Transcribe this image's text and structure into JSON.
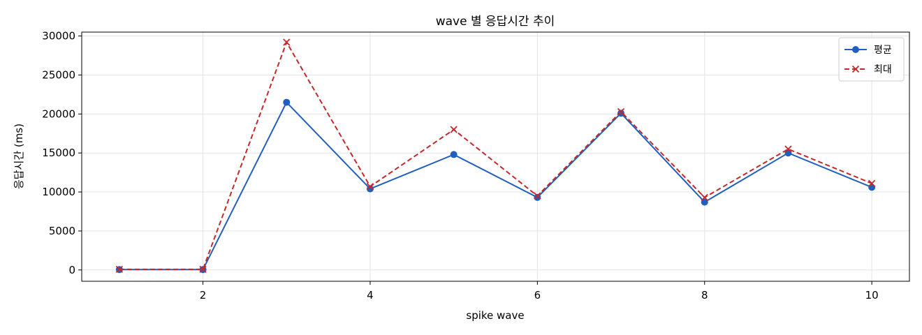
{
  "chart_data": {
    "type": "line",
    "title": "wave 별 응답시간 추이",
    "xlabel": "spike wave",
    "ylabel": "응답시간 (ms)",
    "x": [
      1,
      2,
      3,
      4,
      5,
      6,
      7,
      8,
      9,
      10
    ],
    "xlim": [
      0.55,
      10.45
    ],
    "ylim": [
      -1450,
      30500
    ],
    "xticks": [
      2,
      4,
      6,
      8,
      10
    ],
    "yticks": [
      0,
      5000,
      10000,
      15000,
      20000,
      25000,
      30000
    ],
    "grid": true,
    "legend_position": "top-right",
    "series": [
      {
        "name": "평균",
        "color": "#1f5fbf",
        "line_style": "solid",
        "marker": "circle",
        "values": [
          50,
          50,
          21500,
          10400,
          14800,
          9300,
          20100,
          8700,
          15000,
          10600
        ]
      },
      {
        "name": "최대",
        "color": "#c62828",
        "line_style": "dashed",
        "marker": "x",
        "values": [
          80,
          80,
          29200,
          10700,
          18000,
          9500,
          20300,
          9300,
          15500,
          11100
        ]
      }
    ]
  }
}
